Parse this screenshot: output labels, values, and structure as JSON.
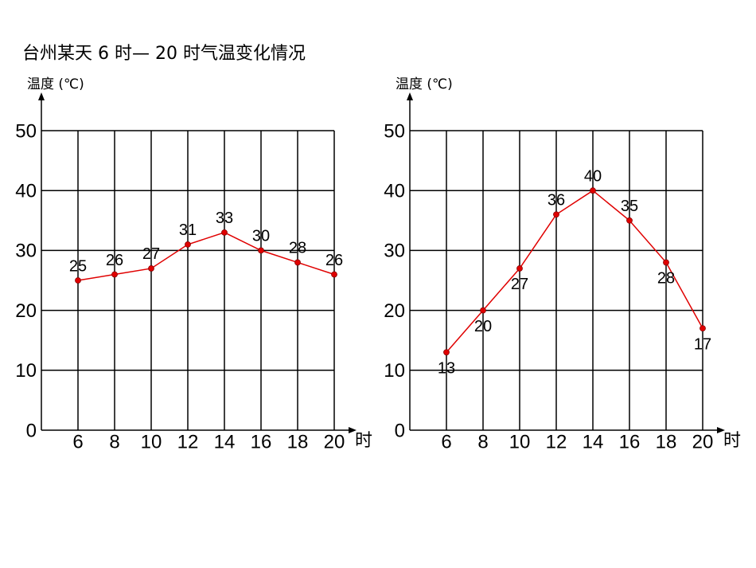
{
  "title": "台州某天 6 时— 20 时气温变化情况",
  "chart_data": [
    {
      "type": "line",
      "ylabel": "温度 (℃)",
      "xlabel": "时",
      "x": [
        6,
        8,
        10,
        12,
        14,
        16,
        18,
        20
      ],
      "series": [
        {
          "color": "#e00000",
          "values": [
            25,
            26,
            27,
            31,
            33,
            30,
            28,
            26
          ]
        }
      ],
      "xlim": [
        4,
        20
      ],
      "xticks": [
        6,
        8,
        10,
        12,
        14,
        16,
        18,
        20
      ],
      "ylim": [
        0,
        50
      ],
      "yticks": [
        0,
        10,
        20,
        30,
        40,
        50
      ],
      "grid": true
    },
    {
      "type": "line",
      "ylabel": "温度 (℃)",
      "xlabel": "时",
      "x": [
        6,
        8,
        10,
        12,
        14,
        16,
        18,
        20
      ],
      "series": [
        {
          "color": "#e00000",
          "values": [
            13,
            20,
            27,
            36,
            40,
            35,
            28,
            17
          ]
        }
      ],
      "xlim": [
        4,
        20
      ],
      "xticks": [
        6,
        8,
        10,
        12,
        14,
        16,
        18,
        20
      ],
      "ylim": [
        0,
        50
      ],
      "yticks": [
        0,
        10,
        20,
        30,
        40,
        50
      ],
      "grid": true
    }
  ]
}
